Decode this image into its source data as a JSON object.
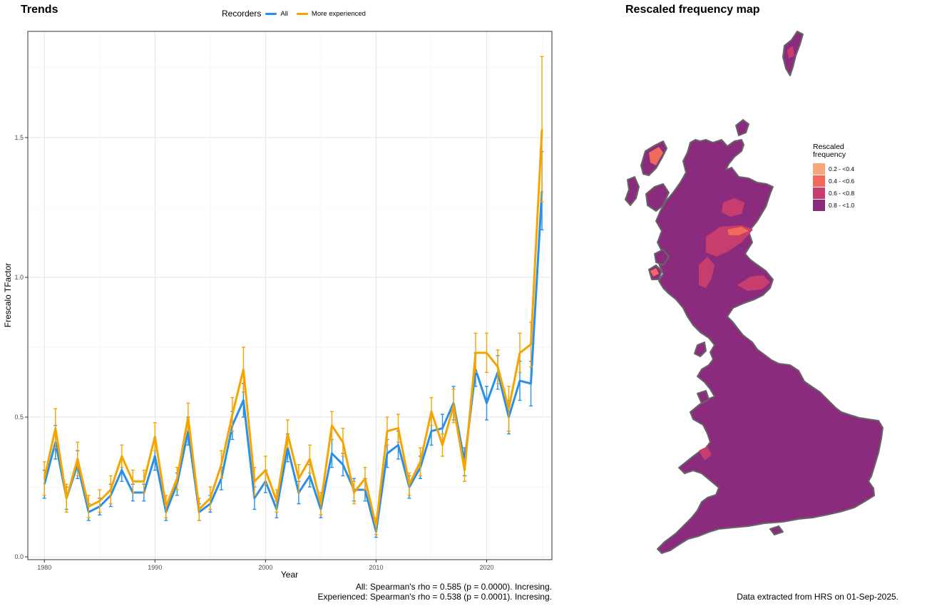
{
  "left_title": "Trends",
  "right_title": "Rescaled frequency map",
  "legend": {
    "title": "Recorders",
    "items": [
      {
        "label": "All",
        "color": "#2a8fe6"
      },
      {
        "label": "More experienced",
        "color": "#f5a400"
      }
    ]
  },
  "stats": {
    "all": "All: Spearman's rho = 0.585 (p = 0.0000). Incresing.",
    "experienced": "Experienced: Spearman's rho = 0.538 (p = 0.0001). Incresing."
  },
  "footer": "Data extracted from HRS on 01-Sep-2025.",
  "map_legend": {
    "title": "Rescaled frequency",
    "items": [
      {
        "label": "0.2 - <0.4",
        "color": "#f9a77a"
      },
      {
        "label": "0.4 - <0.6",
        "color": "#f0695d"
      },
      {
        "label": "0.6 - <0.8",
        "color": "#c73d6e"
      },
      {
        "label": "0.8 - <1.0",
        "color": "#8a2b7e"
      }
    ]
  },
  "chart_data": {
    "type": "line",
    "xlabel": "Year",
    "ylabel": "Frescalo TFactor",
    "xlim": [
      1978.5,
      2025.9
    ],
    "ylim": [
      -0.01,
      1.88
    ],
    "x_ticks": [
      1980,
      1990,
      2000,
      2010,
      2020
    ],
    "y_ticks": [
      0.0,
      0.5,
      1.0,
      1.5
    ],
    "y_tick_labels": [
      "0.0",
      "0.5",
      "1.0",
      "1.5"
    ],
    "grid": true,
    "legend_position": "top",
    "x": [
      1980,
      1981,
      1982,
      1983,
      1984,
      1985,
      1986,
      1987,
      1988,
      1989,
      1990,
      1991,
      1992,
      1993,
      1994,
      1995,
      1996,
      1997,
      1998,
      1999,
      2000,
      2001,
      2002,
      2003,
      2004,
      2005,
      2006,
      2007,
      2008,
      2009,
      2010,
      2011,
      2012,
      2013,
      2014,
      2015,
      2016,
      2017,
      2018,
      2019,
      2020,
      2021,
      2022,
      2023,
      2024,
      2025
    ],
    "series": [
      {
        "name": "All",
        "color": "#2a8fe6",
        "values": [
          0.26,
          0.41,
          0.21,
          0.33,
          0.16,
          0.18,
          0.22,
          0.31,
          0.23,
          0.23,
          0.36,
          0.16,
          0.26,
          0.45,
          0.16,
          0.19,
          0.28,
          0.47,
          0.56,
          0.21,
          0.27,
          0.17,
          0.39,
          0.23,
          0.29,
          0.17,
          0.37,
          0.33,
          0.24,
          0.24,
          0.09,
          0.37,
          0.4,
          0.25,
          0.32,
          0.45,
          0.46,
          0.55,
          0.34,
          0.67,
          0.55,
          0.66,
          0.5,
          0.63,
          0.62,
          1.31
        ],
        "err": [
          0.05,
          0.06,
          0.04,
          0.05,
          0.03,
          0.03,
          0.04,
          0.04,
          0.03,
          0.03,
          0.05,
          0.03,
          0.04,
          0.05,
          0.03,
          0.03,
          0.04,
          0.05,
          0.06,
          0.04,
          0.04,
          0.03,
          0.05,
          0.04,
          0.04,
          0.03,
          0.05,
          0.04,
          0.04,
          0.04,
          0.02,
          0.05,
          0.05,
          0.04,
          0.04,
          0.05,
          0.05,
          0.06,
          0.05,
          0.06,
          0.06,
          0.06,
          0.06,
          0.07,
          0.08,
          0.14
        ]
      },
      {
        "name": "More experienced",
        "color": "#f5a400",
        "values": [
          0.28,
          0.46,
          0.21,
          0.35,
          0.18,
          0.2,
          0.24,
          0.36,
          0.27,
          0.27,
          0.43,
          0.18,
          0.28,
          0.5,
          0.17,
          0.21,
          0.33,
          0.51,
          0.67,
          0.27,
          0.31,
          0.2,
          0.44,
          0.28,
          0.35,
          0.19,
          0.47,
          0.41,
          0.23,
          0.28,
          0.11,
          0.45,
          0.46,
          0.26,
          0.34,
          0.52,
          0.4,
          0.54,
          0.31,
          0.73,
          0.73,
          0.68,
          0.53,
          0.73,
          0.76,
          1.53
        ],
        "err": [
          0.06,
          0.07,
          0.05,
          0.06,
          0.04,
          0.04,
          0.05,
          0.04,
          0.04,
          0.04,
          0.05,
          0.04,
          0.04,
          0.05,
          0.04,
          0.04,
          0.05,
          0.06,
          0.08,
          0.05,
          0.05,
          0.04,
          0.05,
          0.05,
          0.05,
          0.04,
          0.05,
          0.05,
          0.04,
          0.04,
          0.03,
          0.05,
          0.05,
          0.04,
          0.05,
          0.05,
          0.04,
          0.06,
          0.04,
          0.07,
          0.07,
          0.06,
          0.08,
          0.07,
          0.08,
          0.26
        ]
      }
    ]
  }
}
